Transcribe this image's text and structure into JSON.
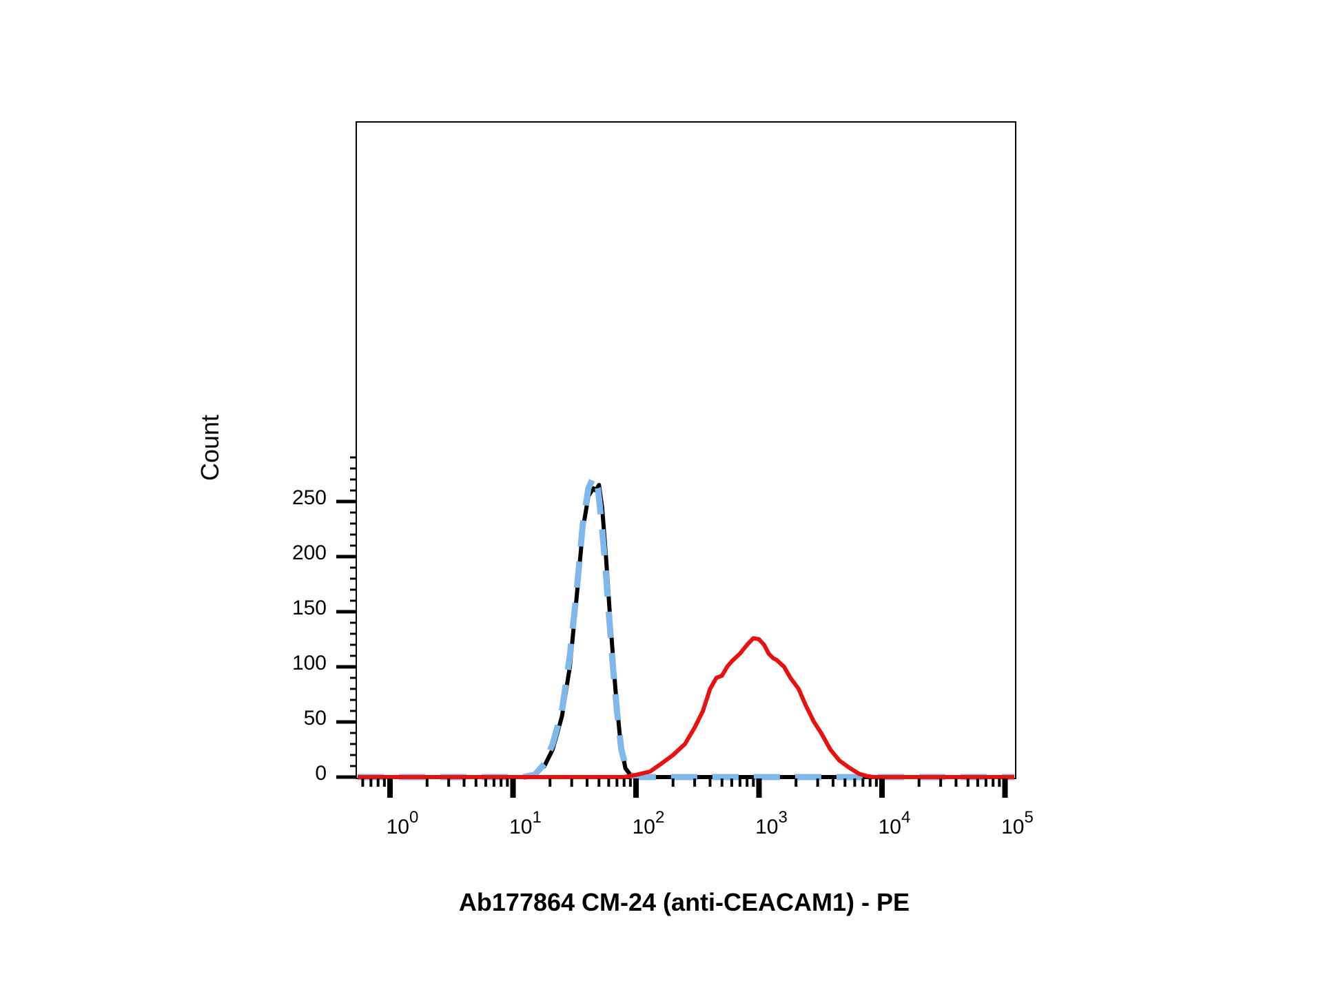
{
  "chart_data": {
    "type": "line",
    "title": "",
    "xlabel": "Ab177864 CM-24 (anti-CEACAM1) - PE",
    "ylabel": "Count",
    "x_scale": "log",
    "xlim": [
      0.4,
      200000
    ],
    "ylim": [
      0,
      295
    ],
    "grid": false,
    "legend": "none",
    "x_ticks": [
      {
        "value": 1,
        "base": "10",
        "exp": "0"
      },
      {
        "value": 10,
        "base": "10",
        "exp": "1"
      },
      {
        "value": 100,
        "base": "10",
        "exp": "2"
      },
      {
        "value": 1000,
        "base": "10",
        "exp": "3"
      },
      {
        "value": 10000,
        "base": "10",
        "exp": "4"
      },
      {
        "value": 100000,
        "base": "10",
        "exp": "5"
      }
    ],
    "y_ticks": [
      {
        "value": 0,
        "label": "0"
      },
      {
        "value": 50,
        "label": "50"
      },
      {
        "value": 100,
        "label": "100"
      },
      {
        "value": 150,
        "label": "150"
      },
      {
        "value": 200,
        "label": "200"
      },
      {
        "value": 250,
        "label": "250"
      }
    ],
    "series": [
      {
        "color": "#000000",
        "style": "solid",
        "x": [
          0.45,
          8,
          13,
          15,
          18,
          21,
          25,
          29,
          33,
          37,
          41,
          45,
          47,
          50,
          53,
          57,
          62,
          68,
          75,
          82,
          90,
          100,
          110,
          130,
          170,
          220,
          300,
          1000,
          10000,
          200000
        ],
        "y": [
          0,
          0,
          0,
          3,
          10,
          25,
          55,
          100,
          165,
          225,
          255,
          262,
          260,
          265,
          245,
          200,
          140,
          80,
          30,
          8,
          2,
          1,
          0,
          0,
          0,
          0,
          0,
          0,
          0,
          0
        ]
      },
      {
        "color": "#7fb8ea",
        "style": "dashed",
        "x": [
          0.45,
          12,
          15,
          18,
          21,
          25,
          29,
          33,
          37,
          41,
          45,
          49,
          52,
          56,
          60,
          65,
          70,
          76,
          83,
          90,
          100,
          110,
          200,
          1000,
          10000,
          200000
        ],
        "y": [
          0,
          0,
          2,
          12,
          30,
          60,
          110,
          170,
          230,
          262,
          272,
          262,
          235,
          195,
          150,
          100,
          60,
          25,
          8,
          2,
          0,
          0,
          0,
          0,
          0,
          0
        ]
      },
      {
        "color": "#e8110f",
        "style": "solid",
        "x": [
          0.45,
          60,
          80,
          100,
          130,
          160,
          200,
          250,
          300,
          350,
          400,
          450,
          500,
          550,
          600,
          700,
          800,
          900,
          1000,
          1100,
          1200,
          1300,
          1400,
          1600,
          1800,
          2100,
          2400,
          2800,
          3200,
          3800,
          4500,
          5500,
          6500,
          7500,
          8500,
          200000
        ],
        "y": [
          0,
          0,
          0,
          2,
          5,
          12,
          20,
          30,
          45,
          60,
          80,
          90,
          92,
          100,
          105,
          112,
          120,
          126,
          125,
          120,
          112,
          108,
          106,
          100,
          90,
          80,
          65,
          50,
          40,
          25,
          15,
          8,
          3,
          1,
          0,
          0
        ]
      }
    ]
  }
}
